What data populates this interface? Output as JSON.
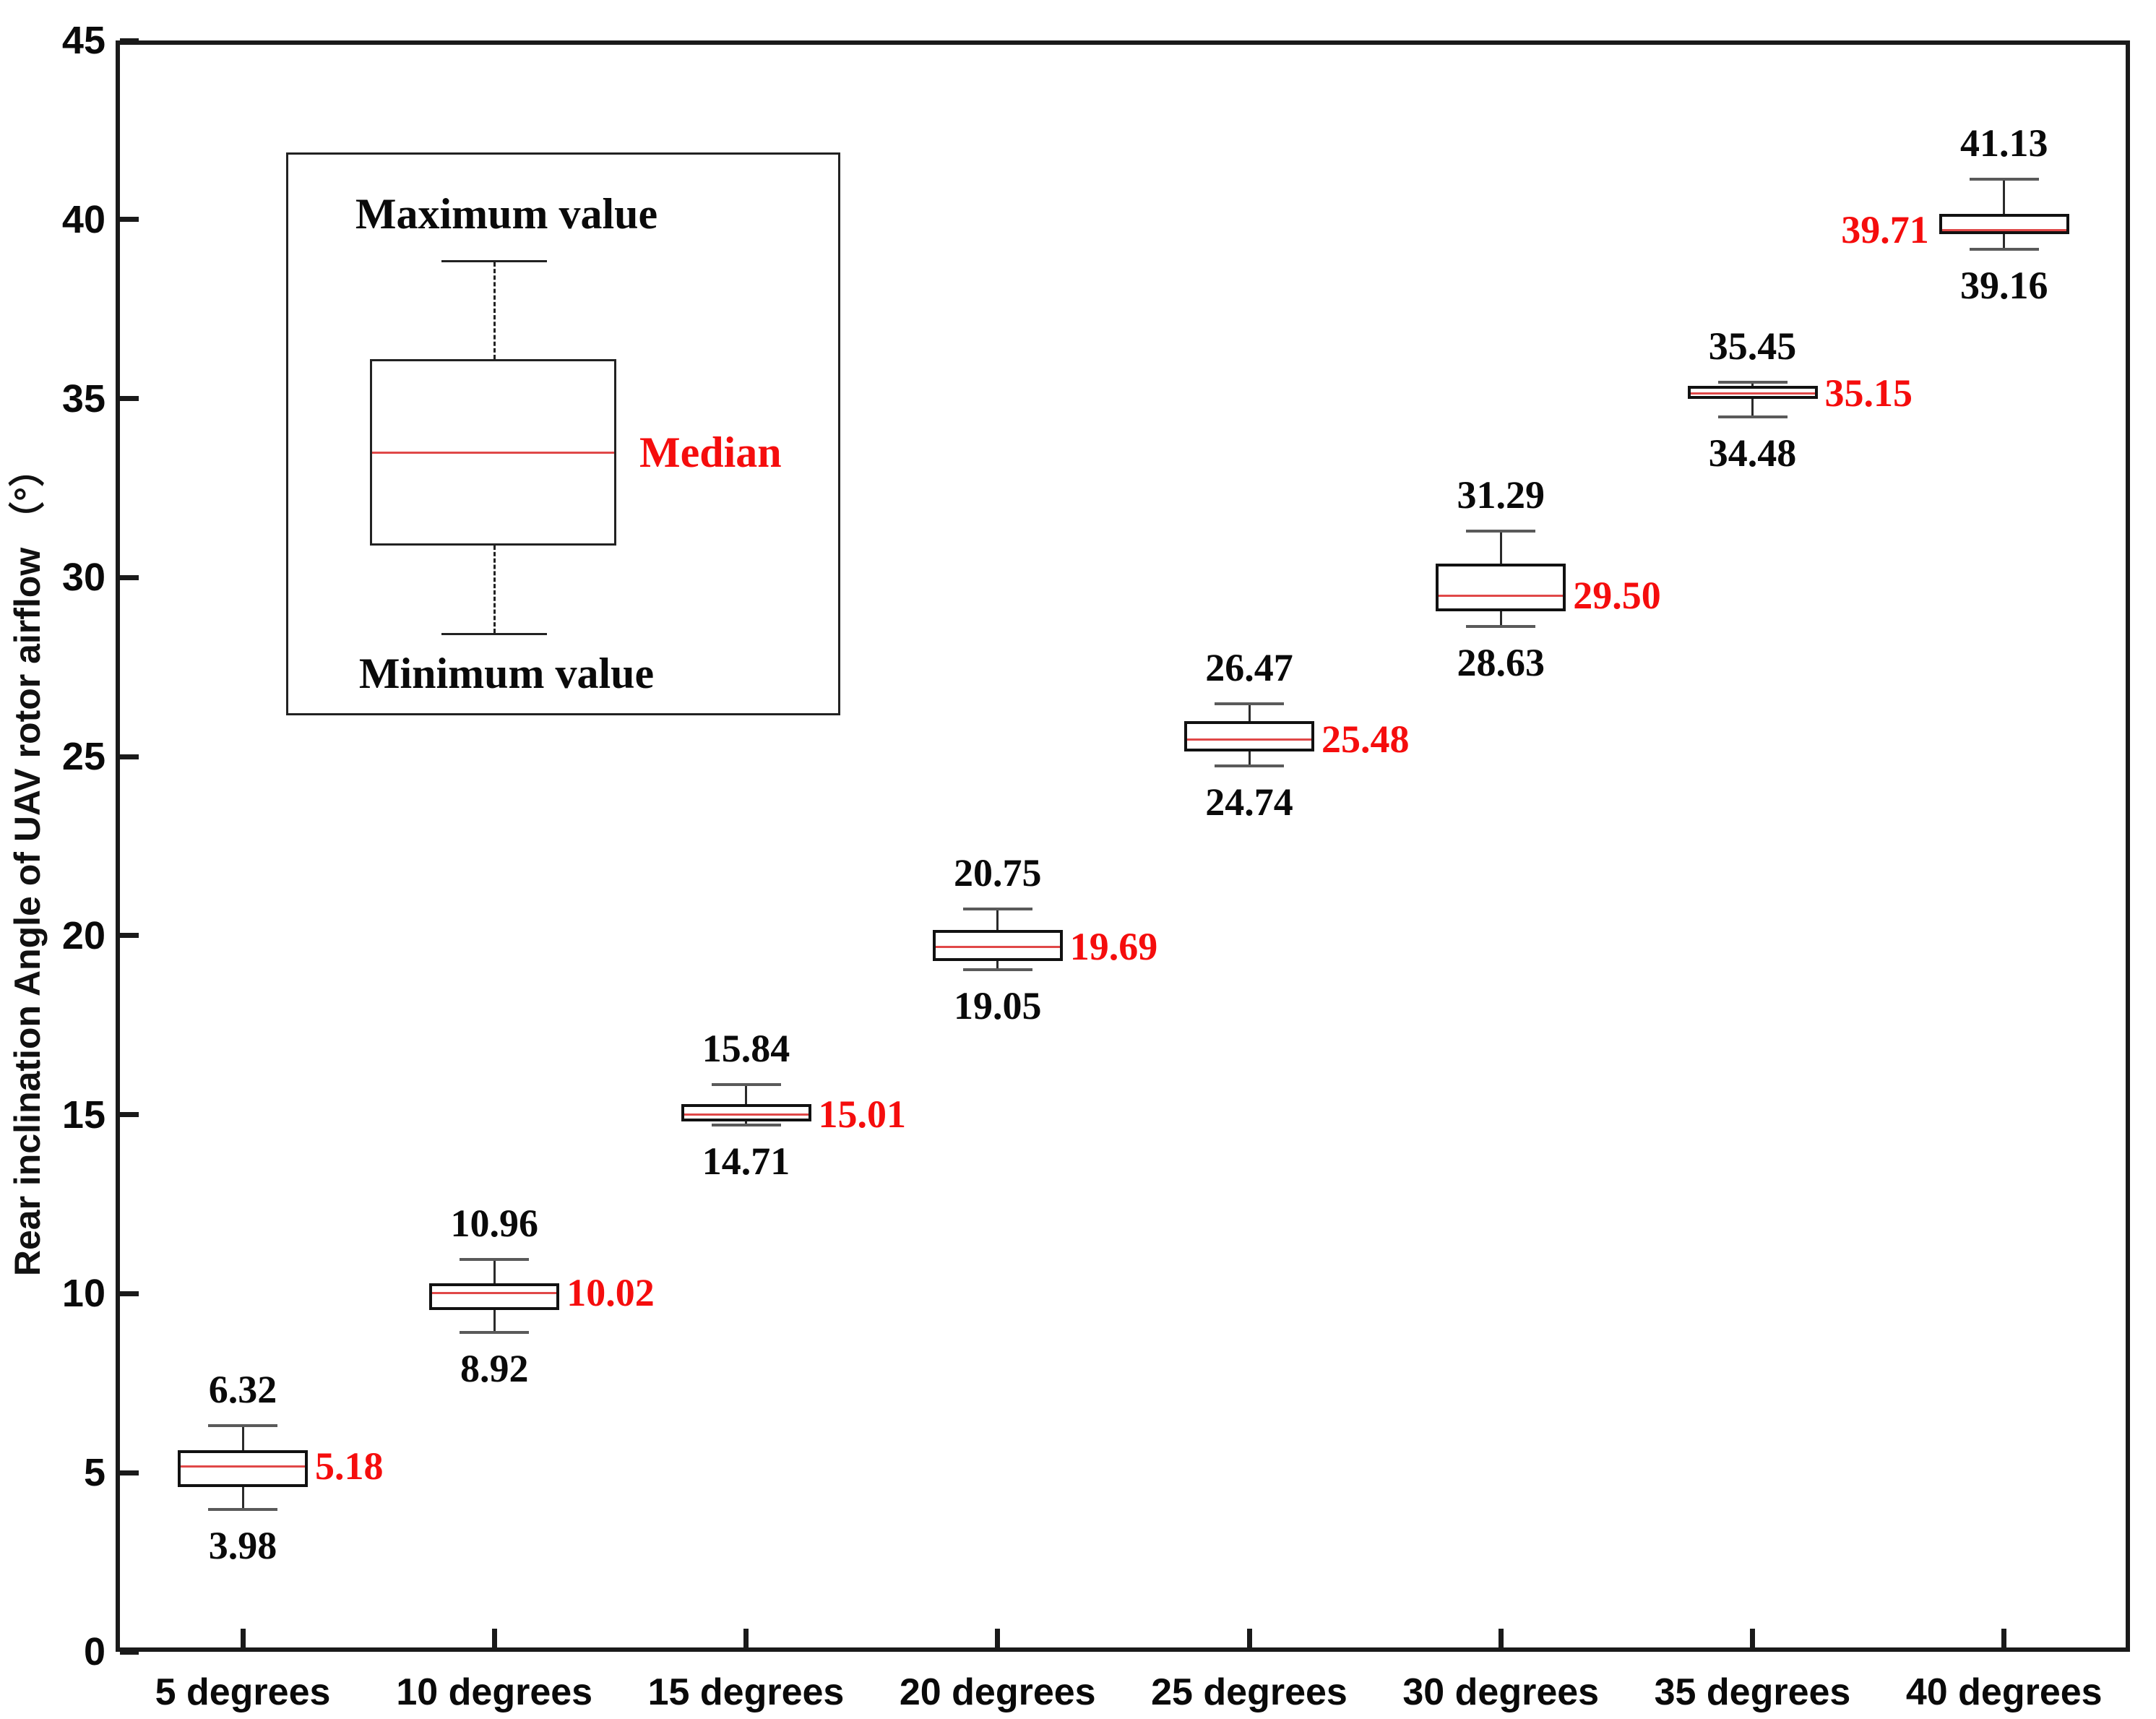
{
  "axes": {
    "y_title": "Rear inclination Angle of UAV rotor airflow （°）",
    "y_ticks": [
      "0",
      "5",
      "10",
      "15",
      "20",
      "25",
      "30",
      "35",
      "40",
      "45"
    ],
    "x_ticks": [
      "5 degrees",
      "10 degrees",
      "15 degrees",
      "20 degrees",
      "25 degrees",
      "30 degrees",
      "35 degrees",
      "40 degrees"
    ]
  },
  "legend": {
    "max_label": "Maximum value",
    "median_label": "Median",
    "min_label": "Minimum value"
  },
  "colors": {
    "axis": "#1a1a1a",
    "box_border": "#111111",
    "whisker": "#2b2b2b",
    "cap": "#5a5a5a",
    "median_line": "#e04848",
    "annotation_black": "#0a0a0a",
    "annotation_red": "#f50d0d"
  },
  "chart_data": {
    "type": "box",
    "title": "",
    "xlabel": "",
    "ylabel": "Rear inclination Angle of UAV rotor airflow （°）",
    "ylim": [
      0,
      45
    ],
    "grid": false,
    "categories": [
      "5 degrees",
      "10 degrees",
      "15 degrees",
      "20 degrees",
      "25 degrees",
      "30 degrees",
      "35 degrees",
      "40 degrees"
    ],
    "series": [
      {
        "category": "5 degrees",
        "min": 3.98,
        "q1": 4.6,
        "median": 5.18,
        "q3": 5.62,
        "max": 6.32,
        "labels": {
          "max": "6.32",
          "median": "5.18",
          "min": "3.98"
        },
        "median_label_side": "right"
      },
      {
        "category": "10 degrees",
        "min": 8.92,
        "q1": 9.55,
        "median": 10.02,
        "q3": 10.3,
        "max": 10.96,
        "labels": {
          "max": "10.96",
          "median": "10.02",
          "min": "8.92"
        },
        "median_label_side": "right"
      },
      {
        "category": "15 degrees",
        "min": 14.71,
        "q1": 14.82,
        "median": 15.01,
        "q3": 15.3,
        "max": 15.84,
        "labels": {
          "max": "15.84",
          "median": "15.01",
          "min": "14.71"
        },
        "median_label_side": "right"
      },
      {
        "category": "20 degrees",
        "min": 19.05,
        "q1": 19.3,
        "median": 19.69,
        "q3": 20.15,
        "max": 20.75,
        "labels": {
          "max": "20.75",
          "median": "19.69",
          "min": "19.05"
        },
        "median_label_side": "right"
      },
      {
        "category": "25 degrees",
        "min": 24.74,
        "q1": 25.15,
        "median": 25.48,
        "q3": 26.0,
        "max": 26.47,
        "labels": {
          "max": "26.47",
          "median": "25.48",
          "min": "24.74"
        },
        "median_label_side": "right"
      },
      {
        "category": "30 degrees",
        "min": 28.63,
        "q1": 29.05,
        "median": 29.5,
        "q3": 30.4,
        "max": 31.29,
        "labels": {
          "max": "31.29",
          "median": "29.50",
          "min": "28.63"
        },
        "median_label_side": "right"
      },
      {
        "category": "35 degrees",
        "min": 34.48,
        "q1": 35.0,
        "median": 35.15,
        "q3": 35.35,
        "max": 35.45,
        "labels": {
          "max": "35.45",
          "median": "35.15",
          "min": "34.48"
        },
        "median_label_side": "right"
      },
      {
        "category": "40 degrees",
        "min": 39.16,
        "q1": 39.6,
        "median": 39.71,
        "q3": 40.15,
        "max": 41.13,
        "labels": {
          "max": "41.13",
          "median": "39.71",
          "min": "39.16"
        },
        "median_label_side": "left"
      }
    ]
  }
}
